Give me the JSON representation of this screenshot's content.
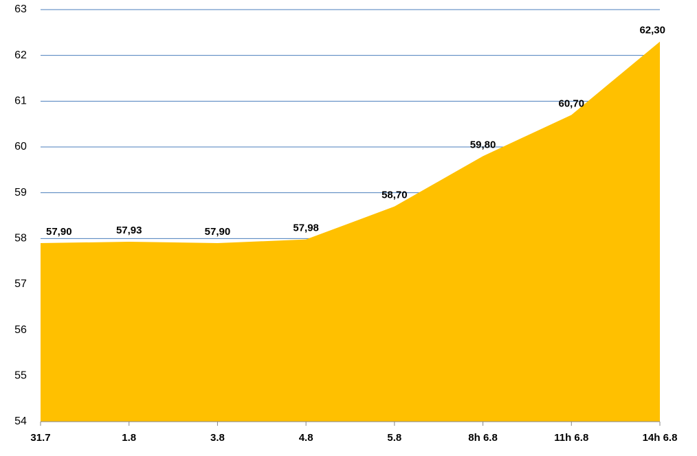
{
  "chart_data": {
    "type": "area",
    "categories": [
      "31.7",
      "1.8",
      "3.8",
      "4.8",
      "5.8",
      "8h 6.8",
      "11h 6.8",
      "14h 6.8"
    ],
    "values": [
      57.9,
      57.93,
      57.9,
      57.98,
      58.7,
      59.8,
      60.7,
      62.3
    ],
    "value_labels": [
      "57,90",
      "57,93",
      "57,90",
      "57,98",
      "58,70",
      "59,80",
      "60,70",
      "62,30"
    ],
    "color": "#ffc000",
    "ylim": [
      54,
      63
    ],
    "yticks": [
      54,
      55,
      56,
      57,
      58,
      59,
      60,
      61,
      62,
      63
    ],
    "grid": true
  }
}
